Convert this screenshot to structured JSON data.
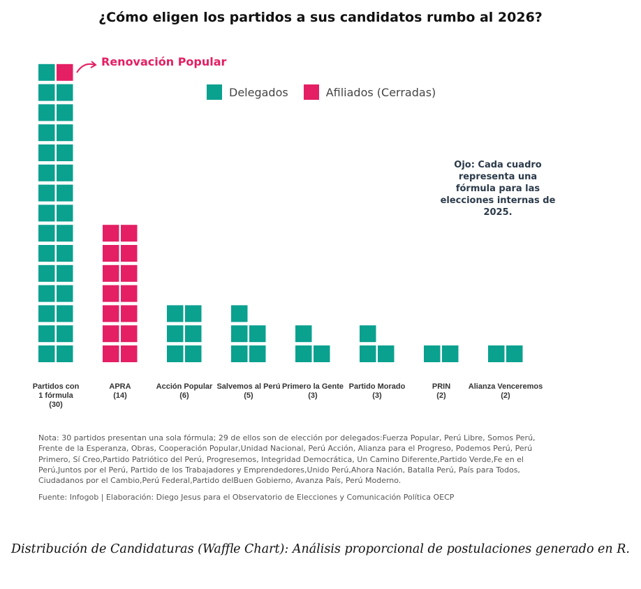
{
  "colors": {
    "delegados": "#0aa18f",
    "afiliados": "#e41f63",
    "text": "#333333"
  },
  "chart_data": {
    "type": "waffle",
    "title": "¿Cómo eligen los partidos a sus candidatos rumbo al 2026?",
    "legend": [
      "Delegados",
      "Afiliados (Cerradas)"
    ],
    "legend_placement": "top-center",
    "unit_note": "Ojo: Cada cuadro representa una fórmula para las elecciones internas de 2025.",
    "callout": "Renovación Popular",
    "categories": [
      {
        "label": [
          "Partidos con",
          "1 fórmula",
          "(30)"
        ],
        "delegados": 29,
        "afiliados": 1
      },
      {
        "label": [
          "APRA",
          "(14)"
        ],
        "delegados": 0,
        "afiliados": 14
      },
      {
        "label": [
          "Acción Popular",
          "(6)"
        ],
        "delegados": 6,
        "afiliados": 0
      },
      {
        "label": [
          "Salvemos al Perú",
          "(5)"
        ],
        "delegados": 5,
        "afiliados": 0
      },
      {
        "label": [
          "Primero la Gente",
          "(3)"
        ],
        "delegados": 3,
        "afiliados": 0
      },
      {
        "label": [
          "Partido Morado",
          "(3)"
        ],
        "delegados": 3,
        "afiliados": 0
      },
      {
        "label": [
          "PRIN",
          "(2)"
        ],
        "delegados": 2,
        "afiliados": 0
      },
      {
        "label": [
          "Alianza Venceremos",
          "(2)"
        ],
        "delegados": 2,
        "afiliados": 0
      }
    ],
    "squares_per_row": 2
  },
  "note": "Nota: 30 partidos presentan una sola fórmula; 29 de ellos son de elección por delegados:Fuerza Popular, Perú Libre,  Somos Perú, Frente de la Esperanza, Obras, Cooperación Popular,Unidad Nacional, Perú Acción, Alianza para el Progreso,  Podemos Perú, Perú Primero, Sí Creo,Partido Patriótico del Perú, Progresemos, Integridad Democrática, Un Camino Diferente,Partido Verde,Fe en el Perú,Juntos por el Perú, Partido de los Trabajadores y Emprendedores,Unido Perú,Ahora Nación, Batalla Perú, País para Todos, Ciudadanos por el Cambio,Perú Federal,Partido delBuen Gobierno, Avanza País, Perú Moderno.",
  "source": "Fuente: Infogob | Elaboración: Diego Jesus para el Observatorio de Elecciones y Comunicación Política OECP",
  "caption": "Distribución de Candidaturas (Waffle Chart): Análisis proporcional de postulaciones generado en R."
}
